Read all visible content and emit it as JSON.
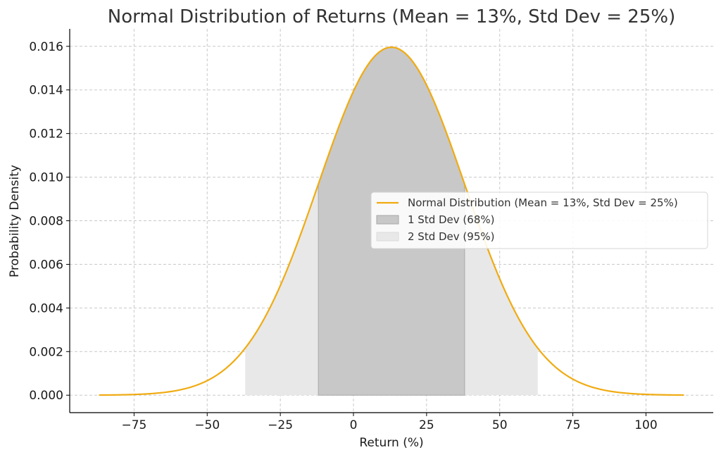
{
  "chart_data": {
    "type": "area",
    "title": "Normal Distribution of Returns (Mean = 13%, Std Dev = 25%)",
    "xlabel": "Return (%)",
    "ylabel": "Probability Density",
    "distribution": {
      "mean": 13,
      "std_dev": 25
    },
    "x_range": [
      -87,
      113
    ],
    "xlim": [
      -97,
      123
    ],
    "ylim": [
      -0.0008,
      0.0168
    ],
    "x_ticks": [
      -75,
      -50,
      -25,
      0,
      25,
      50,
      75,
      100
    ],
    "x_tick_labels": [
      "−75",
      "−50",
      "−25",
      "0",
      "25",
      "50",
      "75",
      "100"
    ],
    "y_ticks": [
      0,
      0.002,
      0.004,
      0.006,
      0.008,
      0.01,
      0.012,
      0.014,
      0.016
    ],
    "y_tick_labels": [
      "0.000",
      "0.002",
      "0.004",
      "0.006",
      "0.008",
      "0.010",
      "0.012",
      "0.014",
      "0.016"
    ],
    "grid": true,
    "legend_position": "center-right",
    "series": [
      {
        "name": "Normal Distribution (Mean = 13%, Std Dev = 25%)",
        "kind": "line",
        "color": "#f0ab12"
      },
      {
        "name": "1 Std Dev (68%)",
        "kind": "band",
        "range": [
          -12,
          38
        ],
        "color": "#c8c8c8"
      },
      {
        "name": "2 Std Dev (95%)",
        "kind": "band",
        "range": [
          -37,
          63
        ],
        "color": "#e8e8e8"
      }
    ]
  }
}
